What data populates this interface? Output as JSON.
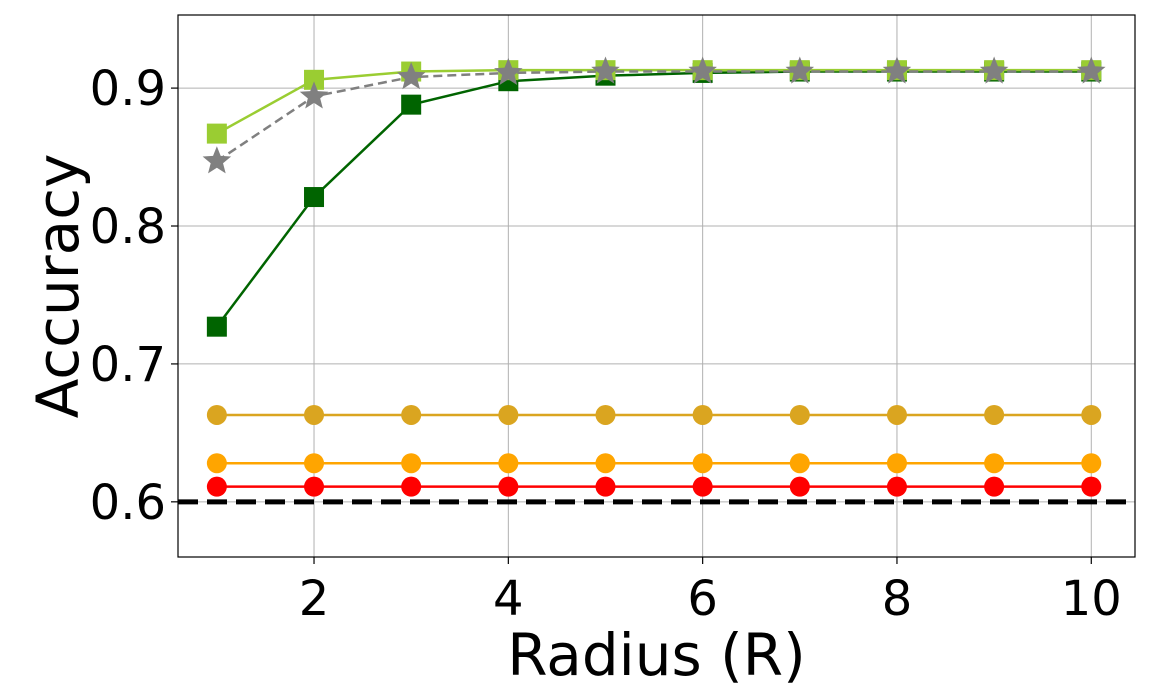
{
  "chart_data": {
    "type": "line",
    "title": "",
    "xlabel": "Radius (R)",
    "ylabel": "Accuracy",
    "xlim": [
      0.6,
      10.45
    ],
    "ylim": [
      0.56,
      0.953
    ],
    "xticks": [
      2,
      4,
      6,
      8,
      10
    ],
    "yticks": [
      0.6,
      0.7,
      0.8,
      0.9
    ],
    "xtick_labels": [
      "2",
      "4",
      "6",
      "8",
      "10"
    ],
    "ytick_labels": [
      "0.6",
      "0.7",
      "0.8",
      "0.9"
    ],
    "grid": true,
    "legend": "none",
    "x": [
      1,
      2,
      3,
      4,
      5,
      6,
      7,
      8,
      9,
      10
    ],
    "reference_line": {
      "y": 0.6,
      "color": "#000000",
      "style": "dashed"
    },
    "series": [
      {
        "values": [
          0.663,
          0.663,
          0.663,
          0.663,
          0.663,
          0.663,
          0.663,
          0.663,
          0.663,
          0.663
        ],
        "color": "#DAA520",
        "marker": "circle",
        "style": "solid"
      },
      {
        "values": [
          0.628,
          0.628,
          0.628,
          0.628,
          0.628,
          0.628,
          0.628,
          0.628,
          0.628,
          0.628
        ],
        "color": "#FFA500",
        "marker": "circle",
        "style": "solid"
      },
      {
        "values": [
          0.611,
          0.611,
          0.611,
          0.611,
          0.611,
          0.611,
          0.611,
          0.611,
          0.611,
          0.611
        ],
        "color": "#FF0000",
        "marker": "circle",
        "style": "solid"
      },
      {
        "values": [
          0.727,
          0.821,
          0.888,
          0.905,
          0.909,
          0.911,
          0.912,
          0.912,
          0.912,
          0.912
        ],
        "color": "#006400",
        "marker": "square",
        "style": "solid"
      },
      {
        "values": [
          0.867,
          0.906,
          0.912,
          0.913,
          0.913,
          0.913,
          0.913,
          0.913,
          0.913,
          0.913
        ],
        "color": "#9ACD32",
        "marker": "square",
        "style": "solid"
      },
      {
        "values": [
          0.847,
          0.894,
          0.908,
          0.911,
          0.912,
          0.912,
          0.912,
          0.912,
          0.912,
          0.912
        ],
        "color": "#808080",
        "marker": "star",
        "style": "dashed"
      }
    ]
  }
}
